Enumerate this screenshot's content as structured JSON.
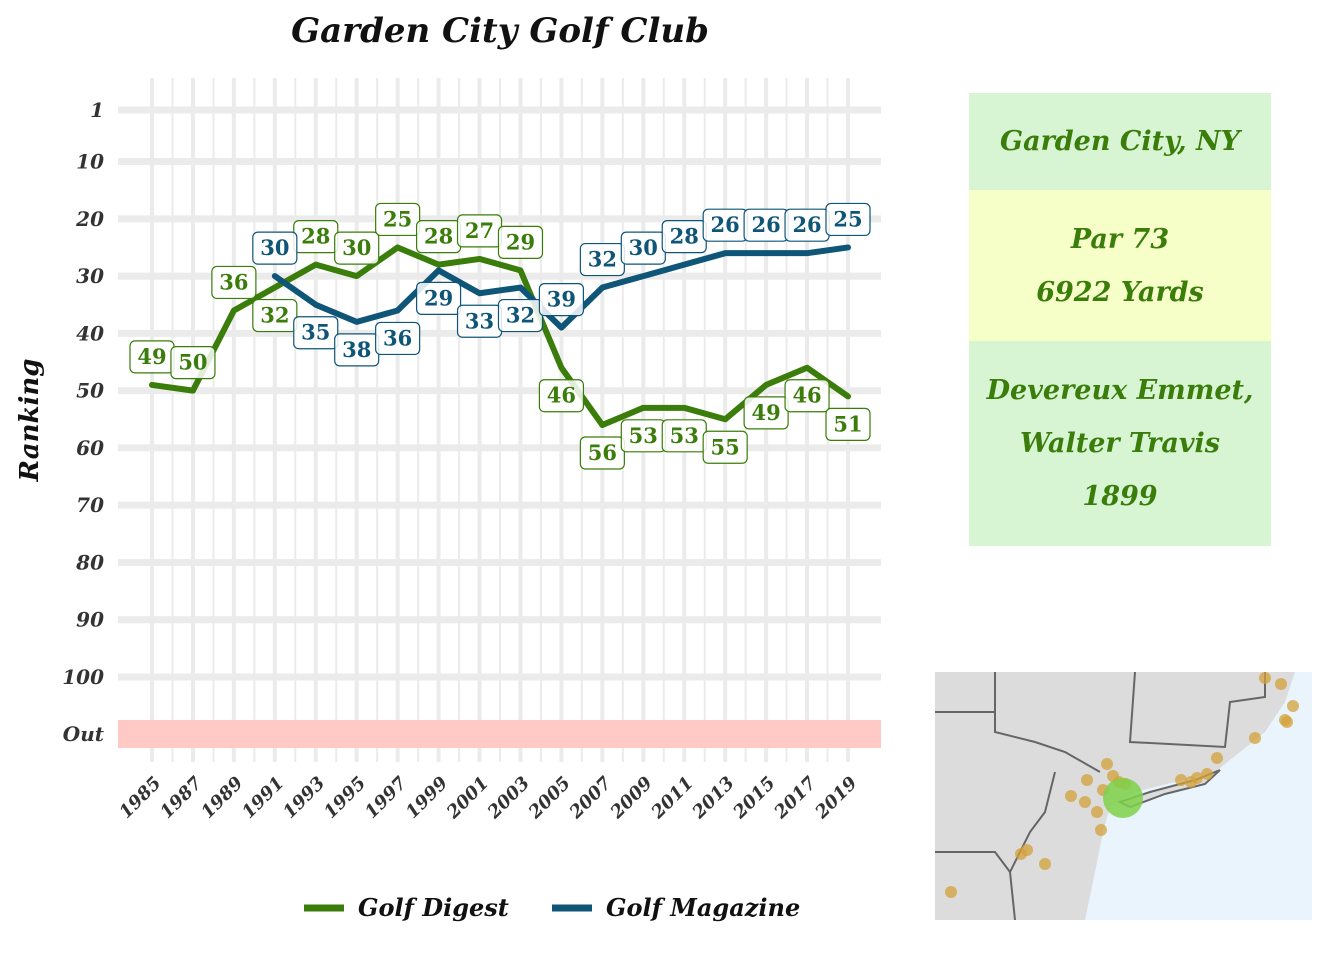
{
  "chart_data": {
    "type": "line",
    "title": "Garden City Golf Club",
    "xlabel": "",
    "ylabel": "Ranking",
    "y_inverted": true,
    "yticks": [
      "1",
      "10",
      "20",
      "30",
      "40",
      "50",
      "60",
      "70",
      "80",
      "90",
      "100",
      "Out"
    ],
    "xticks": [
      "1985",
      "1987",
      "1989",
      "1991",
      "1993",
      "1995",
      "1997",
      "1999",
      "2001",
      "2003",
      "2005",
      "2007",
      "2009",
      "2011",
      "2013",
      "2015",
      "2017",
      "2019"
    ],
    "out_band_color": "#ffc9c5",
    "grid": true,
    "legend_placement": "bottom",
    "series": [
      {
        "name": "Golf Digest",
        "color": "#3a7d0a",
        "x": [
          1985,
          1987,
          1989,
          1991,
          1993,
          1995,
          1997,
          1999,
          2001,
          2003,
          2005,
          2007,
          2009,
          2011,
          2013,
          2015,
          2017,
          2019
        ],
        "values": [
          49,
          50,
          36,
          32,
          28,
          30,
          25,
          28,
          27,
          29,
          46,
          56,
          53,
          53,
          55,
          49,
          46,
          51
        ]
      },
      {
        "name": "Golf Magazine",
        "color": "#0f5577",
        "x": [
          1991,
          1993,
          1995,
          1997,
          1999,
          2001,
          2003,
          2005,
          2007,
          2009,
          2011,
          2013,
          2015,
          2017,
          2019
        ],
        "values": [
          30,
          35,
          38,
          36,
          29,
          33,
          32,
          39,
          32,
          30,
          28,
          26,
          26,
          26,
          25
        ]
      }
    ]
  },
  "info": {
    "location": "Garden City, NY",
    "par": "Par 73",
    "yards": "6922 Yards",
    "architect_line1": "Devereux Emmet,",
    "architect_line2": "Walter Travis",
    "year": "1899"
  },
  "map": {
    "land_color": "#dcdcdc",
    "water_color": "#eaf4fd",
    "marker_color": "#d4a13a",
    "highlight_color": "#7fd14a"
  }
}
